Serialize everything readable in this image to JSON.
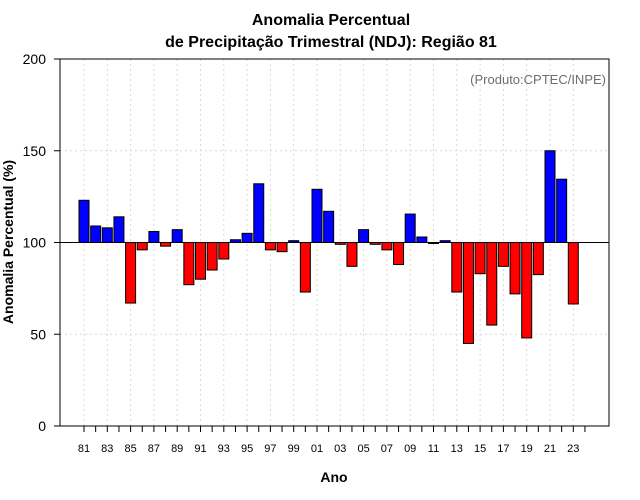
{
  "chart_data": {
    "type": "bar",
    "title_line1": "Anomalia Percentual",
    "title_line2": "de Precipitação Trimestral (NDJ): Região 81",
    "xlabel": "Ano",
    "ylabel": "Anomalia Percentual (%)",
    "credit": "(Produto:CPTEC/INPE)",
    "ylim": [
      0,
      200
    ],
    "yticks": [
      0,
      50,
      100,
      150,
      200
    ],
    "baseline": 100,
    "colors": {
      "above": "#0000ff",
      "below": "#ff0000"
    },
    "grid": true,
    "x": [
      1981,
      1982,
      1983,
      1984,
      1985,
      1986,
      1987,
      1988,
      1989,
      1990,
      1991,
      1992,
      1993,
      1994,
      1995,
      1996,
      1997,
      1998,
      1999,
      2000,
      2001,
      2002,
      2003,
      2004,
      2005,
      2006,
      2007,
      2008,
      2009,
      2010,
      2011,
      2012,
      2013,
      2014,
      2015,
      2016,
      2017,
      2018,
      2019,
      2020,
      2021,
      2022,
      2023
    ],
    "tick_labels": [
      "81",
      "",
      "83",
      "",
      "85",
      "",
      "87",
      "",
      "89",
      "",
      "91",
      "",
      "93",
      "",
      "95",
      "",
      "97",
      "",
      "99",
      "",
      "01",
      "",
      "03",
      "",
      "05",
      "",
      "07",
      "",
      "09",
      "",
      "11",
      "",
      "13",
      "",
      "15",
      "",
      "17",
      "",
      "19",
      "",
      "21",
      "",
      "23"
    ],
    "values": [
      123,
      109,
      108,
      114,
      67,
      96,
      106,
      98,
      107,
      77,
      80,
      85,
      91,
      101.5,
      105,
      132,
      96,
      95,
      101,
      73,
      129,
      117,
      99,
      87,
      107,
      99,
      96,
      88,
      115.5,
      103,
      99.5,
      101,
      73,
      45,
      83,
      55,
      87,
      72,
      48,
      82.5,
      150,
      134.5,
      66.5
    ]
  }
}
